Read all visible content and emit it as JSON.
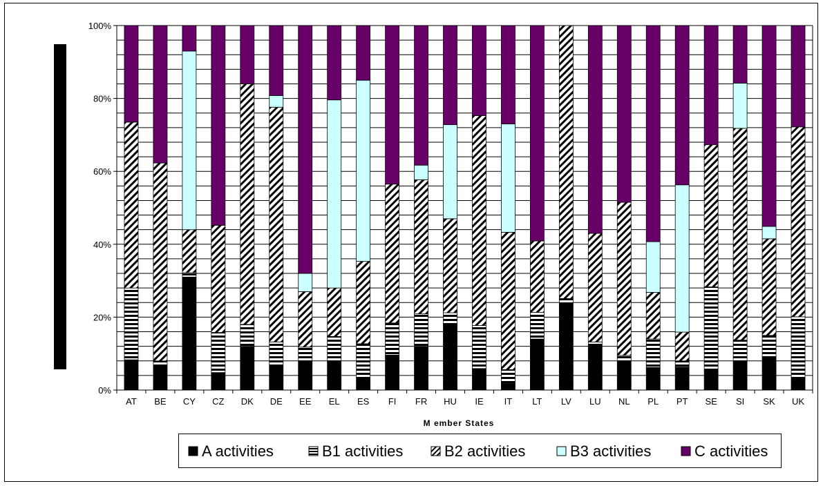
{
  "chart_data": {
    "type": "bar",
    "stacked": "percent",
    "title": "",
    "xlabel": "M ember States",
    "ylabel": "",
    "ylim": [
      0,
      100
    ],
    "yticks": [
      "0%",
      "20%",
      "40%",
      "60%",
      "80%",
      "100%"
    ],
    "grid": true,
    "legend_position": "bottom",
    "categories": [
      "AT",
      "BE",
      "CY",
      "CZ",
      "DK",
      "DE",
      "EE",
      "EL",
      "ES",
      "FI",
      "FR",
      "HU",
      "IE",
      "IT",
      "LT",
      "LV",
      "LU",
      "NL",
      "PL",
      "PT",
      "SE",
      "SI",
      "SK",
      "UK"
    ],
    "series": [
      {
        "name": "A activities",
        "color": "#000000",
        "pattern": "solid",
        "values": [
          8.3,
          6.5,
          31,
          4.8,
          12,
          6.7,
          7.9,
          7.6,
          3.4,
          9.6,
          12,
          17.8,
          5.9,
          1.8,
          14,
          23.6,
          12.1,
          7.6,
          6.2,
          6.3,
          5.3,
          7.6,
          9,
          3.2
        ]
      },
      {
        "name": "B1 activities",
        "color": "#000000",
        "pattern": "horizontal-lines",
        "values": [
          19.7,
          1.5,
          1.2,
          11,
          6,
          6.5,
          3.9,
          7.1,
          9.3,
          8.8,
          8.9,
          3.4,
          11.8,
          3.8,
          7.3,
          1.5,
          1.1,
          1.9,
          7.8,
          1.7,
          23,
          6.1,
          6,
          16.9
        ]
      },
      {
        "name": "B2 activities",
        "color": "#000000",
        "pattern": "diagonal-hatch",
        "values": [
          45.5,
          54.3,
          11.8,
          29.4,
          66,
          64.4,
          15.2,
          13.3,
          22.6,
          38.1,
          36.8,
          25.8,
          57.6,
          37.7,
          19.6,
          74.9,
          29.8,
          42,
          12.8,
          7.9,
          39,
          58.1,
          26.5,
          52.1
        ]
      },
      {
        "name": "B3 activities",
        "color": "#ccffff",
        "pattern": "solid",
        "values": [
          0,
          0,
          49,
          0,
          0,
          3.2,
          5,
          51.6,
          49.7,
          0,
          4,
          25.8,
          0,
          29.7,
          0,
          0,
          0,
          0,
          13.9,
          40.4,
          0,
          12.4,
          3.4,
          0
        ]
      },
      {
        "name": "C activities",
        "color": "#660066",
        "pattern": "solid",
        "values": [
          26.5,
          37.7,
          7,
          54.8,
          16,
          19.2,
          68,
          20.4,
          15,
          43.5,
          38.3,
          27.2,
          24.7,
          27,
          59.1,
          0,
          57,
          48.5,
          59.3,
          43.7,
          32.7,
          15.8,
          55.1,
          27.8
        ]
      }
    ]
  }
}
